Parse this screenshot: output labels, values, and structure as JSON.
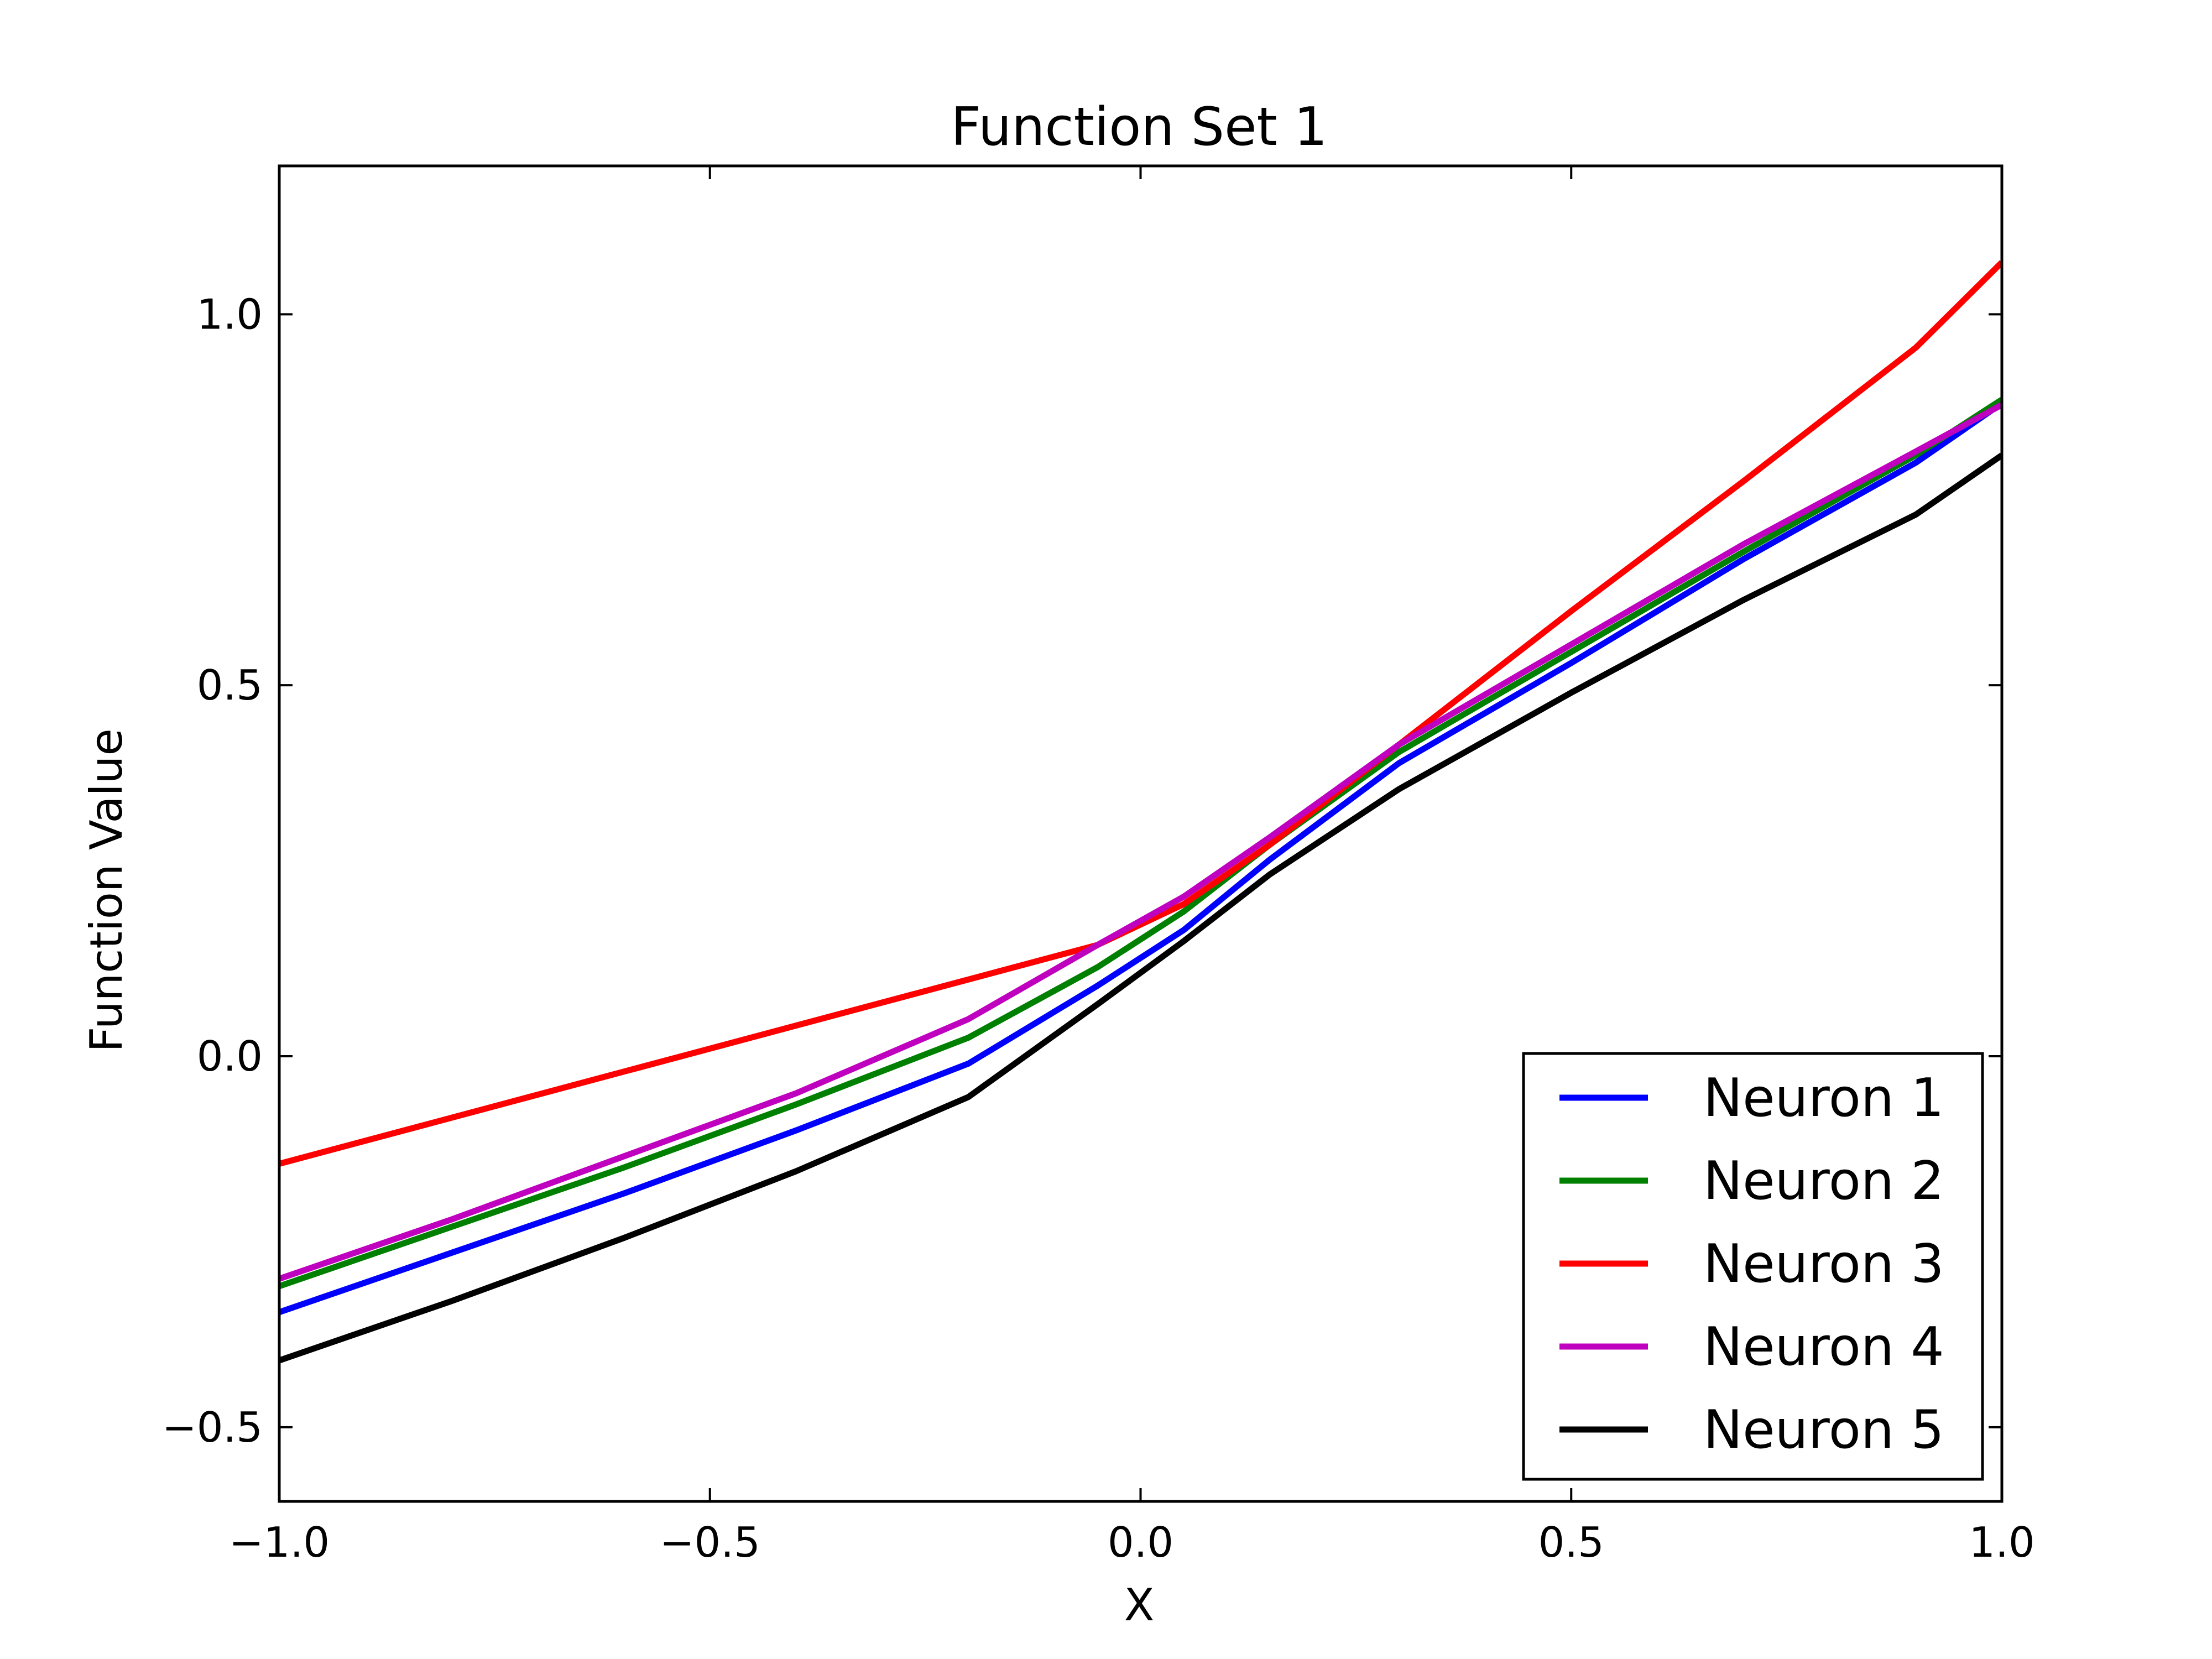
{
  "chart_data": {
    "type": "line",
    "title": "Function Set 1",
    "xlabel": "X",
    "ylabel": "Function Value",
    "xlim": [
      -1.0,
      1.0
    ],
    "ylim": [
      -0.6,
      1.2
    ],
    "xticks": [
      -1.0,
      -0.5,
      0.0,
      0.5,
      1.0
    ],
    "xtick_labels": [
      "−1.0",
      "−0.5",
      "0.0",
      "0.5",
      "1.0"
    ],
    "yticks": [
      -0.5,
      0.0,
      0.5,
      1.0
    ],
    "ytick_labels": [
      "−0.5",
      "0.0",
      "0.5",
      "1.0"
    ],
    "grid": false,
    "legend_position": "lower-right",
    "series": [
      {
        "name": "Neuron 1",
        "color": "#0000ff",
        "x": [
          -1.0,
          -0.8,
          -0.6,
          -0.4,
          -0.2,
          -0.05,
          0.05,
          0.15,
          0.3,
          0.5,
          0.7,
          0.9,
          1.0
        ],
        "y": [
          -0.345,
          -0.265,
          -0.185,
          -0.1,
          -0.01,
          0.095,
          0.17,
          0.265,
          0.395,
          0.53,
          0.67,
          0.8,
          0.88
        ]
      },
      {
        "name": "Neuron 2",
        "color": "#008000",
        "x": [
          -1.0,
          -0.8,
          -0.6,
          -0.4,
          -0.2,
          -0.05,
          0.05,
          0.15,
          0.3,
          0.5,
          0.7,
          0.9,
          1.0
        ],
        "y": [
          -0.31,
          -0.23,
          -0.15,
          -0.065,
          0.025,
          0.12,
          0.195,
          0.285,
          0.41,
          0.545,
          0.68,
          0.81,
          0.885
        ]
      },
      {
        "name": "Neuron 3",
        "color": "#ff0000",
        "x": [
          -1.0,
          -0.05,
          0.05,
          0.15,
          0.3,
          0.5,
          0.7,
          0.9,
          1.0
        ],
        "y": [
          -0.145,
          0.15,
          0.205,
          0.285,
          0.42,
          0.6,
          0.775,
          0.955,
          1.07
        ]
      },
      {
        "name": "Neuron 4",
        "color": "#bf00bf",
        "x": [
          -1.0,
          -0.8,
          -0.6,
          -0.4,
          -0.2,
          -0.05,
          0.05,
          0.15,
          0.3,
          0.5,
          0.7,
          0.9,
          1.0
        ],
        "y": [
          -0.3,
          -0.22,
          -0.135,
          -0.05,
          0.05,
          0.15,
          0.215,
          0.295,
          0.42,
          0.555,
          0.69,
          0.815,
          0.878
        ]
      },
      {
        "name": "Neuron 5",
        "color": "#000000",
        "x": [
          -1.0,
          -0.8,
          -0.6,
          -0.4,
          -0.2,
          -0.05,
          0.05,
          0.15,
          0.3,
          0.5,
          0.7,
          0.9,
          1.0
        ],
        "y": [
          -0.41,
          -0.33,
          -0.245,
          -0.155,
          -0.055,
          0.07,
          0.155,
          0.245,
          0.36,
          0.49,
          0.615,
          0.73,
          0.81
        ]
      }
    ]
  }
}
